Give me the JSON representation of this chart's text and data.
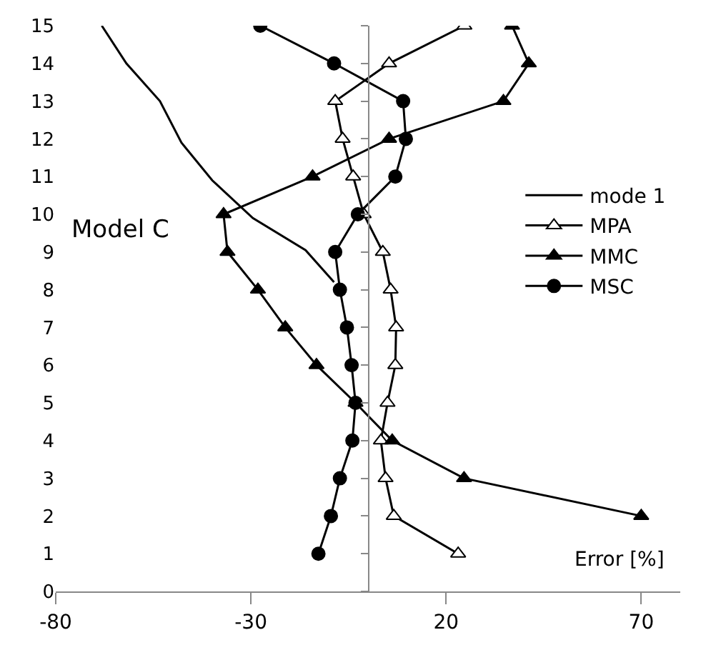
{
  "chart_data": {
    "type": "line",
    "xlabel": "Error [%]",
    "xlim": [
      -80,
      80
    ],
    "xticks": [
      -80,
      -30,
      20,
      70
    ],
    "ylim": [
      0,
      15
    ],
    "yticks": [
      0,
      1,
      2,
      3,
      4,
      5,
      6,
      7,
      8,
      9,
      10,
      11,
      12,
      13,
      14,
      15
    ],
    "grid": false,
    "legend": "right",
    "line_style": "solid",
    "annotations": [
      "Model C"
    ],
    "series": [
      {
        "name": "mode 1",
        "color": "#000000",
        "marker": "none",
        "x": [
          -68.2,
          -61.9,
          -53.3,
          -47.8,
          -39.9,
          -29.5,
          -16,
          -8.7
        ],
        "values": [
          15,
          14,
          13,
          11.9,
          10.9,
          9.9,
          9.05,
          8.2
        ]
      },
      {
        "name": "MPA",
        "color": "#000000",
        "marker": "triangle",
        "colors": [
          "#ffffff",
          "#ffffff",
          "#ffffff",
          "#ffffff",
          "#ffffff",
          "#ffffff",
          "#ffffff",
          "#ffffff",
          "#ffffff",
          "#ffffff",
          "#ffffff",
          "#ffffff",
          "#ffffff",
          "#ffffff",
          "#ffffff"
        ],
        "x": [
          24.7,
          5.4,
          -8.4,
          -6.5,
          -3.8,
          -1.1,
          3.8,
          5.8,
          7.2,
          7,
          5,
          3.3,
          4.5,
          6.6,
          23.1
        ],
        "values": [
          15,
          14,
          13,
          12,
          11,
          10,
          9,
          8,
          7,
          6,
          5,
          4,
          3,
          2,
          1
        ]
      },
      {
        "name": "MMC",
        "color": "#000000",
        "marker": "triangle",
        "x": [
          36.9,
          41.2,
          34.7,
          5.4,
          -14.2,
          -37,
          -36,
          -28.2,
          -21.2,
          -13.2,
          -3.2,
          6.2,
          24.6,
          70
        ],
        "values": [
          15,
          14,
          13,
          12,
          11,
          10,
          9,
          8,
          7,
          6,
          5,
          4,
          3,
          2
        ]
      },
      {
        "name": "MSC",
        "color": "#000000",
        "marker": "circle",
        "x": [
          -27.6,
          -8.7,
          9,
          9.7,
          7,
          -2.6,
          -8.4,
          -7.2,
          -5.4,
          -4.2,
          -3.2,
          -4,
          -7.2,
          -9.5,
          -12.7
        ],
        "values": [
          15,
          14,
          13,
          12,
          11,
          10,
          9,
          8,
          7,
          6,
          5,
          4,
          3,
          2,
          1
        ]
      }
    ]
  }
}
